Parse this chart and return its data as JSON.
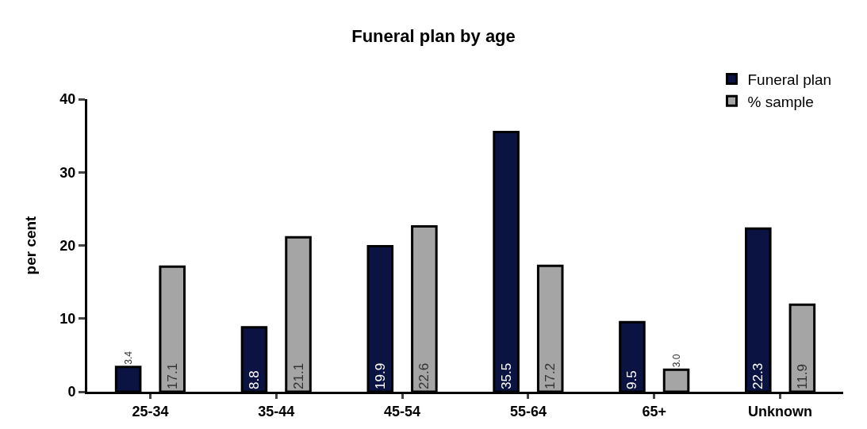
{
  "chart_data": {
    "type": "bar",
    "title": "Funeral plan by age",
    "ylabel": "per cent",
    "categories": [
      "25-34",
      "35-44",
      "45-54",
      "55-64",
      "65+",
      "Unknown"
    ],
    "series": [
      {
        "name": "Funeral plan",
        "color": "#0b1343",
        "values": [
          3.4,
          8.8,
          19.9,
          35.5,
          9.5,
          22.3
        ],
        "value_labels": [
          "3.4",
          "8.8",
          "19.9",
          "35.5",
          "9.5",
          "22.3"
        ]
      },
      {
        "name": "% sample",
        "color": "#a5a5a5",
        "values": [
          17.1,
          21.1,
          22.6,
          17.2,
          3.0,
          11.9
        ],
        "value_labels": [
          "17.1",
          "21.1",
          "22.6",
          "17.2",
          "3.0",
          "11.9"
        ]
      }
    ],
    "ylim": [
      0,
      40
    ],
    "yticks": [
      0,
      10,
      20,
      30,
      40
    ],
    "legend": "top right"
  }
}
